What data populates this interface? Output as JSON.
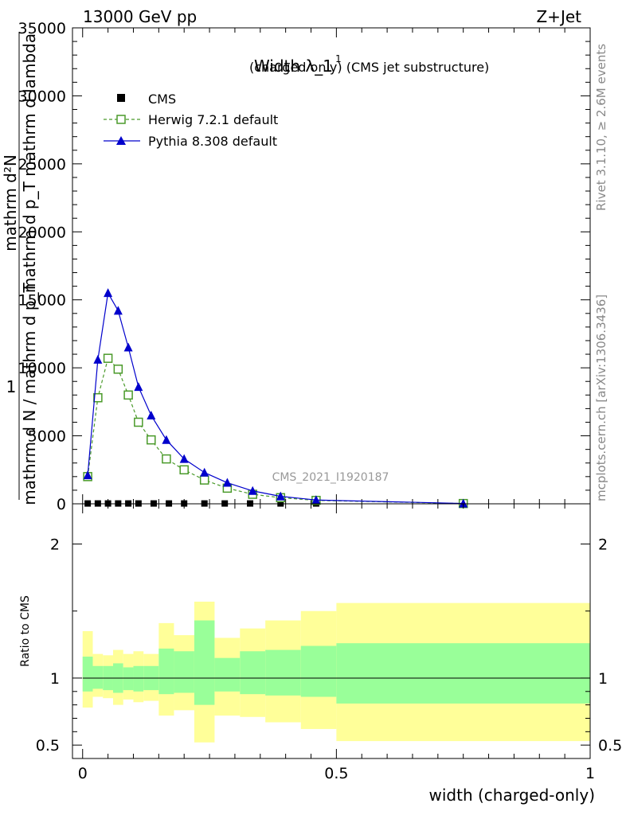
{
  "header": {
    "energy_label": "13000 GeV pp",
    "process_label": "Z+Jet",
    "rivet_label": "Rivet 3.1.10, ≥ 2.6M events",
    "mcplots_label": "mcplots.cern.ch [arXiv:1306.3436]",
    "analysis_label": "CMS_2021_I1920187"
  },
  "chart_data": [
    {
      "type": "line",
      "title": "Width λ_1",
      "title_sup": "1",
      "subtitle": "(charged only) (CMS jet substructure)",
      "ylabel_numerator": "mathrm d²N",
      "ylabel_numerator_2": "mathrm d p_T mathrm d lambda",
      "ylabel_prefix": "1",
      "ylabel_denominator": "mathrm d N / mathrm d p_T",
      "xlim": [
        -0.02,
        1.0
      ],
      "ylim": [
        0,
        35000
      ],
      "yticks": [
        0,
        5000,
        10000,
        15000,
        20000,
        25000,
        30000,
        35000
      ],
      "ytick_labels": [
        "0",
        "5000",
        "10000",
        "15000",
        "20000",
        "25000",
        "30000",
        "35000"
      ],
      "legend": {
        "position": "top-left",
        "entries": [
          "CMS",
          "Herwig 7.2.1 default",
          "Pythia 8.308 default"
        ]
      },
      "series": [
        {
          "name": "CMS",
          "marker": "square",
          "color": "#000000",
          "x": [
            0.01,
            0.03,
            0.05,
            0.07,
            0.09,
            0.11,
            0.14,
            0.17,
            0.2,
            0.24,
            0.28,
            0.33,
            0.39,
            0.46,
            0.75
          ],
          "y": [
            25,
            25,
            25,
            25,
            25,
            25,
            25,
            25,
            25,
            25,
            25,
            25,
            25,
            25,
            25
          ]
        },
        {
          "name": "Herwig 7.2.1 default",
          "marker": "open-square",
          "line": "dashed",
          "color": "#4a9a2a",
          "x": [
            0.01,
            0.03,
            0.05,
            0.07,
            0.09,
            0.11,
            0.135,
            0.165,
            0.2,
            0.24,
            0.285,
            0.335,
            0.39,
            0.46,
            0.75
          ],
          "y": [
            2000,
            7800,
            10700,
            9900,
            8000,
            6000,
            4700,
            3300,
            2500,
            1750,
            1150,
            700,
            450,
            250,
            20
          ]
        },
        {
          "name": "Pythia 8.308 default",
          "marker": "triangle",
          "line": "solid",
          "color": "#0000cc",
          "x": [
            0.01,
            0.03,
            0.05,
            0.07,
            0.09,
            0.11,
            0.135,
            0.165,
            0.2,
            0.24,
            0.285,
            0.335,
            0.39,
            0.46,
            0.75
          ],
          "y": [
            2100,
            10600,
            15500,
            14200,
            11500,
            8600,
            6500,
            4700,
            3300,
            2300,
            1550,
            950,
            550,
            280,
            25
          ]
        }
      ]
    },
    {
      "type": "area",
      "ylabel": "Ratio to CMS",
      "xlabel": "width (charged-only)",
      "xlim": [
        -0.02,
        1.0
      ],
      "ylim": [
        0.4,
        2.3
      ],
      "yticks": [
        0.5,
        1,
        2
      ],
      "ytick_labels": [
        "0.5",
        "1",
        "2"
      ],
      "xticks": [
        0,
        0.5,
        1
      ],
      "xtick_labels": [
        "0",
        "0.5",
        "1"
      ],
      "bins": [
        0.0,
        0.02,
        0.04,
        0.06,
        0.08,
        0.1,
        0.12,
        0.15,
        0.18,
        0.22,
        0.26,
        0.31,
        0.36,
        0.43,
        0.5,
        1.0
      ],
      "band_stat_high": [
        1.16,
        1.09,
        1.09,
        1.11,
        1.08,
        1.09,
        1.09,
        1.22,
        1.2,
        1.43,
        1.15,
        1.2,
        1.21,
        1.24,
        1.26
      ],
      "band_stat_low": [
        0.9,
        0.92,
        0.91,
        0.89,
        0.91,
        0.9,
        0.91,
        0.88,
        0.89,
        0.8,
        0.9,
        0.88,
        0.87,
        0.86,
        0.81
      ],
      "band_total_high": [
        1.35,
        1.18,
        1.17,
        1.21,
        1.18,
        1.2,
        1.18,
        1.41,
        1.32,
        1.57,
        1.3,
        1.37,
        1.43,
        1.5,
        1.56
      ],
      "band_total_low": [
        0.78,
        0.86,
        0.85,
        0.8,
        0.84,
        0.82,
        0.83,
        0.72,
        0.76,
        0.52,
        0.72,
        0.71,
        0.67,
        0.62,
        0.53
      ],
      "reference": 1,
      "colors": {
        "stat": "#99ff99",
        "total": "#ffff99"
      }
    }
  ]
}
